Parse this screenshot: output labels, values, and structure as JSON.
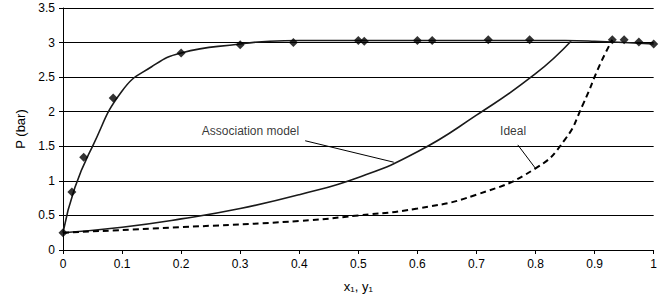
{
  "chart_data": {
    "type": "line",
    "x_label": "x₁, y₁",
    "y_label": "P (bar)",
    "xlim": [
      0,
      1
    ],
    "xticks": [
      0,
      0.1,
      0.2,
      0.3,
      0.4,
      0.5,
      0.6,
      0.7,
      0.8,
      0.9,
      1
    ],
    "ylim": [
      0,
      3.5
    ],
    "yticks": [
      0,
      0.5,
      1,
      1.5,
      2,
      2.5,
      3,
      3.5
    ],
    "grid": true,
    "series": [
      {
        "type": "scatter",
        "marker": "diamond",
        "color": "#000000",
        "x": [
          0,
          0.015,
          0.035,
          0.085,
          0.2,
          0.3,
          0.39,
          0.5,
          0.51,
          0.6,
          0.625,
          0.72,
          0.79,
          0.93,
          0.95,
          0.975,
          1
        ],
        "values": [
          0.25,
          0.84,
          1.34,
          2.2,
          2.85,
          2.97,
          3.0,
          3.03,
          3.02,
          3.03,
          3.03,
          3.04,
          3.04,
          3.04,
          3.04,
          3.01,
          2.98
        ]
      },
      {
        "name": "Association model",
        "type": "line",
        "line_style": "solid",
        "color": "#1a1a1a",
        "x": [
          0,
          0.02,
          0.05,
          0.1,
          0.15,
          0.2,
          0.3,
          0.35,
          0.4,
          0.5,
          0.6,
          0.7,
          0.8,
          0.85,
          0.9,
          1,
          null,
          0,
          0.1,
          0.2,
          0.3,
          0.4,
          0.5,
          0.6,
          0.7,
          0.8,
          0.86
        ],
        "values": [
          0.25,
          0.9,
          1.5,
          2.3,
          2.65,
          2.85,
          2.98,
          3.02,
          3.03,
          3.03,
          3.03,
          3.03,
          3.03,
          3.03,
          3.02,
          2.98,
          null,
          0.25,
          0.33,
          0.45,
          0.6,
          0.8,
          1.05,
          1.42,
          1.95,
          2.55,
          3.02
        ]
      },
      {
        "name": "Ideal",
        "type": "line",
        "line_style": "dashed",
        "color": "#000000",
        "x": [
          0,
          0.2,
          0.4,
          0.5,
          0.6,
          0.7,
          0.8,
          0.85,
          0.88,
          0.91,
          0.93
        ],
        "values": [
          0.25,
          0.33,
          0.42,
          0.5,
          0.6,
          0.8,
          1.18,
          1.6,
          2.1,
          2.7,
          3.04
        ]
      }
    ],
    "annotations": [
      {
        "text": "Association model",
        "x": 0.235,
        "y": 1.72,
        "arrow_from": [
          0.41,
          1.58
        ],
        "arrow_to": [
          0.56,
          1.27
        ]
      },
      {
        "text": "Ideal",
        "x": 0.74,
        "y": 1.72,
        "arrow_from": [
          0.77,
          1.52
        ],
        "arrow_to": [
          0.8,
          1.18
        ]
      }
    ]
  }
}
